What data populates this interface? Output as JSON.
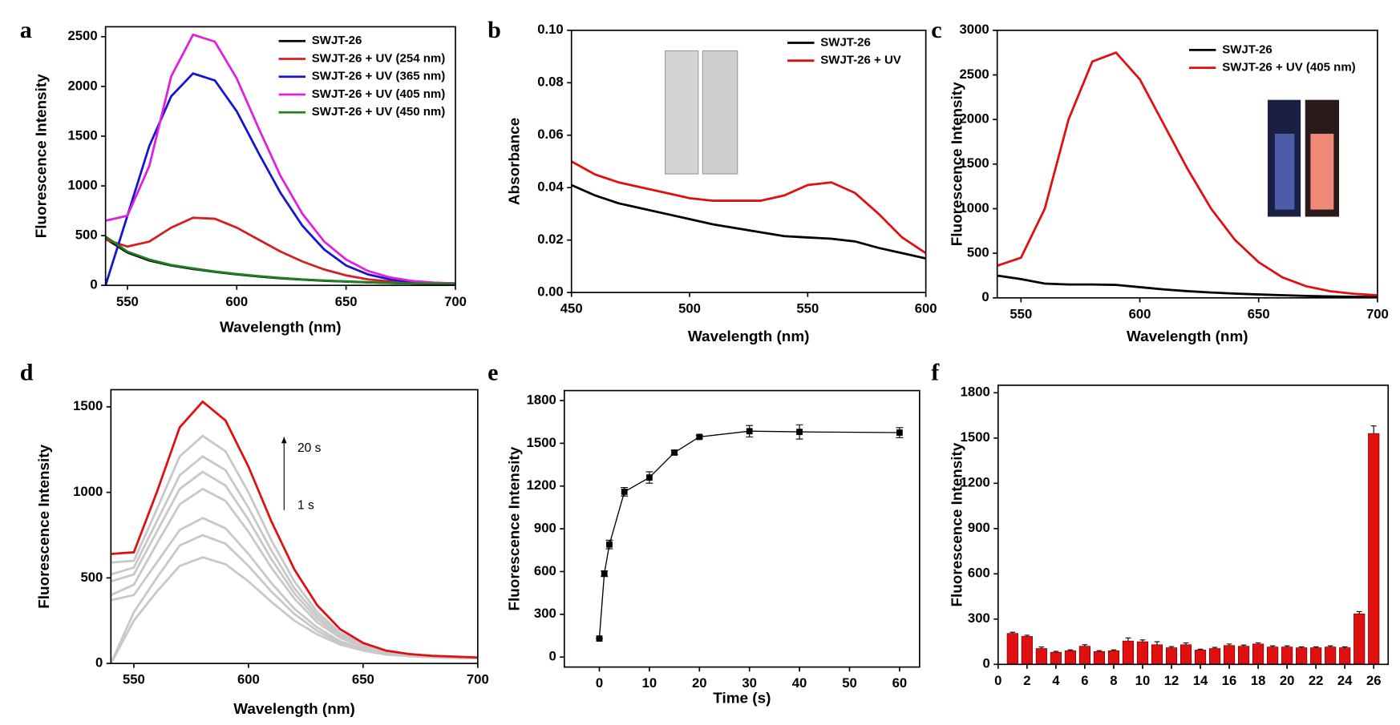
{
  "chart_data": [
    {
      "type": "line",
      "panel_label": "a",
      "ylabel": "Fluorescence Intensity",
      "xlabel": "Wavelength (nm)",
      "x": [
        540,
        550,
        560,
        570,
        580,
        590,
        600,
        610,
        620,
        630,
        640,
        650,
        660,
        670,
        680,
        690,
        700
      ],
      "xlim": [
        540,
        700
      ],
      "ylim": [
        0,
        2600
      ],
      "xticks": [
        550,
        600,
        650,
        700
      ],
      "yticks": [
        0,
        500,
        1000,
        1500,
        2000,
        2500
      ],
      "legend": "upper right",
      "series": [
        {
          "name": "SWJT-26",
          "color": "#000000",
          "values": [
            470,
            330,
            250,
            200,
            165,
            135,
            110,
            90,
            72,
            58,
            47,
            38,
            30,
            24,
            20,
            17,
            15
          ]
        },
        {
          "name": "SWJT-26 + UV (254 nm)",
          "color": "#d42020",
          "values": [
            460,
            390,
            440,
            580,
            680,
            670,
            580,
            460,
            340,
            240,
            160,
            100,
            60,
            40,
            28,
            22,
            18
          ]
        },
        {
          "name": "SWJT-26 + UV (365 nm)",
          "color": "#1515d0",
          "values": [
            0,
            700,
            1400,
            1900,
            2130,
            2060,
            1750,
            1330,
            930,
            600,
            360,
            200,
            110,
            60,
            35,
            25,
            20
          ]
        },
        {
          "name": "SWJT-26 + UV (405 nm)",
          "color": "#e020e0",
          "values": [
            650,
            700,
            1200,
            2100,
            2520,
            2450,
            2080,
            1580,
            1100,
            720,
            440,
            260,
            145,
            80,
            45,
            28,
            20
          ]
        },
        {
          "name": "SWJT-26 + UV (450 nm)",
          "color": "#208020",
          "values": [
            490,
            340,
            260,
            205,
            170,
            140,
            115,
            93,
            75,
            60,
            48,
            39,
            31,
            25,
            20,
            17,
            15
          ]
        }
      ]
    },
    {
      "type": "line",
      "panel_label": "b",
      "ylabel": "Absorbance",
      "xlabel": "Wavelength (nm)",
      "x": [
        450,
        460,
        470,
        480,
        490,
        500,
        510,
        520,
        530,
        540,
        550,
        560,
        570,
        580,
        590,
        600
      ],
      "xlim": [
        450,
        600
      ],
      "ylim": [
        0,
        0.1
      ],
      "xticks": [
        450,
        500,
        550,
        600
      ],
      "yticks": [
        {
          "value": 0,
          "label": "0.00"
        },
        {
          "value": 0.02,
          "label": "0.02"
        },
        {
          "value": 0.04,
          "label": "0.04"
        },
        {
          "value": 0.06,
          "label": "0.06"
        },
        {
          "value": 0.08,
          "label": "0.08"
        },
        {
          "value": 0.1,
          "label": "0.10"
        }
      ],
      "legend": "upper right",
      "series": [
        {
          "name": "SWJT-26",
          "color": "#000000",
          "values": [
            0.041,
            0.037,
            0.034,
            0.032,
            0.03,
            0.028,
            0.026,
            0.0245,
            0.023,
            0.0215,
            0.021,
            0.0205,
            0.0195,
            0.017,
            0.015,
            0.013
          ]
        },
        {
          "name": "SWJT-26 + UV",
          "color": "#e01010",
          "values": [
            0.05,
            0.045,
            0.042,
            0.04,
            0.038,
            0.036,
            0.035,
            0.035,
            0.035,
            0.037,
            0.041,
            0.042,
            0.038,
            0.03,
            0.021,
            0.015
          ]
        }
      ]
    },
    {
      "type": "line",
      "panel_label": "c",
      "ylabel": "Fluorescence Intensity",
      "xlabel": "Wavelength (nm)",
      "x": [
        540,
        550,
        560,
        570,
        580,
        590,
        600,
        610,
        620,
        630,
        640,
        650,
        660,
        670,
        680,
        690,
        700
      ],
      "xlim": [
        540,
        700
      ],
      "ylim": [
        0,
        3000
      ],
      "xticks": [
        550,
        600,
        650,
        700
      ],
      "yticks": [
        0,
        500,
        1000,
        1500,
        2000,
        2500,
        3000
      ],
      "legend": "upper right",
      "series": [
        {
          "name": "SWJT-26",
          "color": "#000000",
          "values": [
            250,
            210,
            160,
            150,
            150,
            145,
            120,
            95,
            75,
            60,
            48,
            38,
            30,
            22,
            16,
            12,
            10
          ]
        },
        {
          "name": "SWJT-26 + UV (405 nm)",
          "color": "#e01010",
          "values": [
            360,
            450,
            1000,
            2000,
            2650,
            2750,
            2450,
            1950,
            1450,
            1000,
            650,
            400,
            230,
            130,
            75,
            45,
            30
          ]
        }
      ]
    },
    {
      "type": "line",
      "panel_label": "d",
      "ylabel": "Fluorescence Intensity",
      "xlabel": "Wavelength (nm)",
      "x": [
        540,
        550,
        560,
        570,
        580,
        590,
        600,
        610,
        620,
        630,
        640,
        650,
        660,
        670,
        680,
        690,
        700
      ],
      "xlim": [
        540,
        700
      ],
      "ylim": [
        0,
        1600
      ],
      "xticks": [
        550,
        600,
        650,
        700
      ],
      "yticks": [
        0,
        500,
        1000,
        1500
      ],
      "annotations": [
        "20 s",
        "1 s"
      ],
      "series": [
        {
          "color": "#c8c8c8",
          "values": [
            0,
            250,
            420,
            570,
            620,
            580,
            480,
            360,
            250,
            170,
            110,
            75,
            52,
            42,
            36,
            32,
            30
          ]
        },
        {
          "color": "#c8c8c8",
          "values": [
            0,
            300,
            500,
            690,
            750,
            700,
            570,
            420,
            290,
            190,
            120,
            80,
            55,
            43,
            37,
            33,
            30
          ]
        },
        {
          "color": "#c8c8c8",
          "values": [
            370,
            400,
            590,
            780,
            850,
            790,
            640,
            470,
            320,
            210,
            130,
            85,
            58,
            45,
            38,
            34,
            31
          ]
        },
        {
          "color": "#c8c8c8",
          "values": [
            400,
            460,
            700,
            930,
            1020,
            950,
            770,
            560,
            380,
            240,
            150,
            95,
            62,
            47,
            40,
            35,
            32
          ]
        },
        {
          "color": "#c8c8c8",
          "values": [
            480,
            520,
            770,
            1020,
            1120,
            1040,
            840,
            610,
            410,
            260,
            160,
            100,
            65,
            48,
            41,
            36,
            32
          ]
        },
        {
          "color": "#c8c8c8",
          "values": [
            520,
            560,
            830,
            1100,
            1210,
            1130,
            910,
            660,
            440,
            280,
            170,
            105,
            68,
            50,
            42,
            37,
            33
          ]
        },
        {
          "color": "#c8c8c8",
          "values": [
            590,
            600,
            900,
            1210,
            1330,
            1240,
            1000,
            720,
            480,
            300,
            180,
            110,
            70,
            52,
            43,
            38,
            34
          ]
        },
        {
          "color": "#e01010",
          "values": [
            640,
            650,
            1000,
            1380,
            1530,
            1420,
            1150,
            830,
            550,
            340,
            200,
            120,
            75,
            55,
            45,
            40,
            35
          ]
        }
      ]
    },
    {
      "type": "errorline",
      "panel_label": "e",
      "ylabel": "Fluorescence Intensity",
      "xlabel": "Time (s)",
      "x": [
        0,
        1,
        2,
        5,
        10,
        15,
        20,
        30,
        40,
        60
      ],
      "values": [
        130,
        585,
        790,
        1160,
        1260,
        1435,
        1545,
        1585,
        1580,
        1575
      ],
      "errors": [
        0,
        20,
        30,
        30,
        40,
        15,
        10,
        40,
        50,
        35
      ],
      "color": "#000000",
      "xlim": [
        -7,
        64
      ],
      "ylim": [
        -70,
        1870
      ],
      "xticks": [
        0,
        10,
        20,
        30,
        40,
        50,
        60
      ],
      "yticks": [
        0,
        300,
        600,
        900,
        1200,
        1500,
        1800
      ]
    },
    {
      "type": "bar",
      "panel_label": "f",
      "ylabel": "Fluorescence Intensity",
      "x": [
        1,
        2,
        3,
        4,
        5,
        6,
        7,
        8,
        9,
        10,
        11,
        12,
        13,
        14,
        15,
        16,
        17,
        18,
        19,
        20,
        21,
        22,
        23,
        24,
        25,
        26
      ],
      "values": [
        205,
        185,
        105,
        80,
        90,
        120,
        85,
        90,
        155,
        150,
        130,
        110,
        130,
        95,
        105,
        125,
        120,
        135,
        115,
        115,
        110,
        110,
        115,
        110,
        335,
        1530
      ],
      "errors": [
        8,
        8,
        10,
        6,
        6,
        10,
        6,
        6,
        20,
        12,
        20,
        8,
        12,
        6,
        8,
        10,
        8,
        8,
        8,
        8,
        6,
        6,
        8,
        6,
        15,
        50
      ],
      "color": "#e01010",
      "xlim": [
        0,
        27
      ],
      "ylim": [
        0,
        1850
      ],
      "xticks": [
        0,
        2,
        4,
        6,
        8,
        10,
        12,
        14,
        16,
        18,
        20,
        22,
        24,
        26
      ],
      "yticks": [
        0,
        300,
        600,
        900,
        1200,
        1500,
        1800
      ]
    }
  ]
}
